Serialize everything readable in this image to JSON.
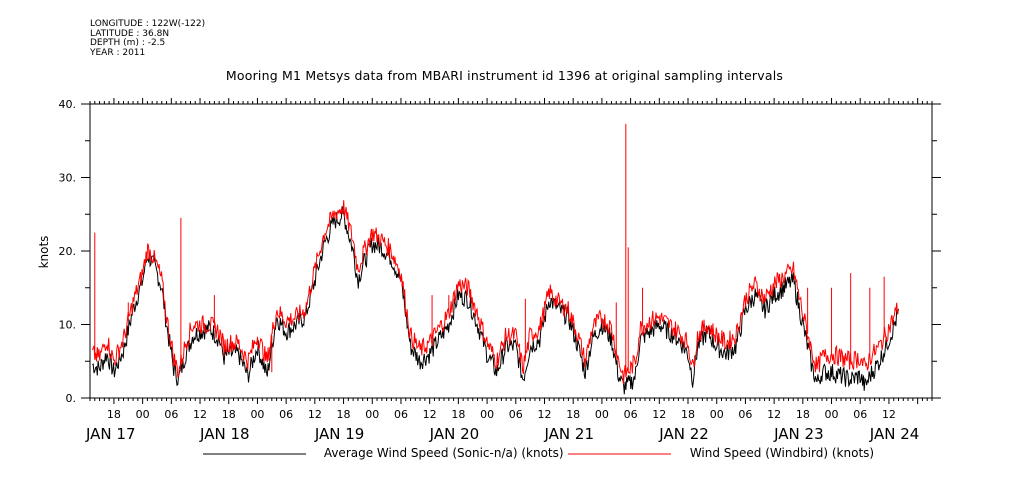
{
  "header": {
    "meta_lines": [
      "LONGITUDE : 122W(-122)",
      "LATITUDE : 36.8N",
      "DEPTH (m) : -2.5",
      "YEAR : 2011"
    ],
    "title": "Mooring M1 Metsys data from MBARI instrument id 1396 at original sampling intervals"
  },
  "colors": {
    "series_black": "#000000",
    "series_red": "#ff0000"
  },
  "chart_data": {
    "type": "line",
    "title": "Mooring M1 Metsys data from MBARI instrument id 1396 at original sampling intervals",
    "ylabel": "knots",
    "xlabel": "",
    "ylim": [
      0,
      40
    ],
    "yticks": [
      "0.",
      "10.",
      "20.",
      "30.",
      "40."
    ],
    "xlim_hours": [
      -11,
      165
    ],
    "hour_ticks": [
      {
        "h": -6,
        "label": "18"
      },
      {
        "h": 0,
        "label": "00"
      },
      {
        "h": 6,
        "label": "06"
      },
      {
        "h": 12,
        "label": "12"
      },
      {
        "h": 18,
        "label": "18"
      },
      {
        "h": 24,
        "label": "00"
      },
      {
        "h": 30,
        "label": "06"
      },
      {
        "h": 36,
        "label": "12"
      },
      {
        "h": 42,
        "label": "18"
      },
      {
        "h": 48,
        "label": "00"
      },
      {
        "h": 54,
        "label": "06"
      },
      {
        "h": 60,
        "label": "12"
      },
      {
        "h": 66,
        "label": "18"
      },
      {
        "h": 72,
        "label": "00"
      },
      {
        "h": 78,
        "label": "06"
      },
      {
        "h": 84,
        "label": "12"
      },
      {
        "h": 90,
        "label": "18"
      },
      {
        "h": 96,
        "label": "00"
      },
      {
        "h": 102,
        "label": "06"
      },
      {
        "h": 108,
        "label": "12"
      },
      {
        "h": 114,
        "label": "18"
      },
      {
        "h": 120,
        "label": "00"
      },
      {
        "h": 126,
        "label": "06"
      },
      {
        "h": 132,
        "label": "12"
      },
      {
        "h": 138,
        "label": "18"
      },
      {
        "h": 144,
        "label": "00"
      },
      {
        "h": 150,
        "label": "06"
      },
      {
        "h": 156,
        "label": "12"
      }
    ],
    "day_labels": [
      {
        "h": -12,
        "label": "JAN 17"
      },
      {
        "h": 12,
        "label": "JAN 18"
      },
      {
        "h": 36,
        "label": "JAN 19"
      },
      {
        "h": 60,
        "label": "JAN 20"
      },
      {
        "h": 84,
        "label": "JAN 21"
      },
      {
        "h": 108,
        "label": "JAN 22"
      },
      {
        "h": 132,
        "label": "JAN 23"
      },
      {
        "h": 152,
        "label": "JAN 24"
      }
    ],
    "series": [
      {
        "name": "Average Wind Speed (Sonic-n/a) (knots)",
        "color": "#000000",
        "points": [
          [
            -10.5,
            4.5
          ],
          [
            -9,
            4
          ],
          [
            -7.5,
            6
          ],
          [
            -6,
            3.5
          ],
          [
            -4,
            6.5
          ],
          [
            -2,
            12
          ],
          [
            0,
            16
          ],
          [
            1,
            19.5
          ],
          [
            2,
            18.5
          ],
          [
            3,
            17
          ],
          [
            4,
            15
          ],
          [
            5,
            10
          ],
          [
            6.5,
            4
          ],
          [
            7.5,
            2.5
          ],
          [
            9,
            6
          ],
          [
            10.5,
            8.5
          ],
          [
            12,
            9
          ],
          [
            14,
            9.5
          ],
          [
            16,
            8
          ],
          [
            17,
            5.5
          ],
          [
            18,
            6
          ],
          [
            20,
            6
          ],
          [
            22,
            3
          ],
          [
            24,
            7
          ],
          [
            26,
            3
          ],
          [
            28,
            11
          ],
          [
            30,
            9
          ],
          [
            32,
            10
          ],
          [
            34,
            11
          ],
          [
            36,
            16
          ],
          [
            38,
            21
          ],
          [
            40,
            24
          ],
          [
            42,
            25
          ],
          [
            44,
            20
          ],
          [
            45,
            16
          ],
          [
            46,
            18
          ],
          [
            48,
            21
          ],
          [
            50,
            20.5
          ],
          [
            52,
            19
          ],
          [
            54,
            16
          ],
          [
            56,
            7
          ],
          [
            58,
            5
          ],
          [
            60,
            6
          ],
          [
            62,
            8
          ],
          [
            64,
            10
          ],
          [
            66,
            14
          ],
          [
            68,
            13.5
          ],
          [
            70,
            10
          ],
          [
            72,
            6
          ],
          [
            74,
            3.5
          ],
          [
            76,
            7
          ],
          [
            78,
            7
          ],
          [
            79.5,
            2.5
          ],
          [
            81,
            7
          ],
          [
            83,
            8
          ],
          [
            85,
            13.5
          ],
          [
            87,
            12
          ],
          [
            89,
            11
          ],
          [
            91,
            7
          ],
          [
            92.5,
            3.5
          ],
          [
            94,
            8
          ],
          [
            96,
            10
          ],
          [
            98,
            8
          ],
          [
            99.5,
            3
          ],
          [
            100.5,
            1.5
          ],
          [
            102,
            2
          ],
          [
            103,
            3
          ],
          [
            104,
            8
          ],
          [
            106,
            9
          ],
          [
            108,
            10
          ],
          [
            110,
            9
          ],
          [
            112,
            8
          ],
          [
            114,
            6
          ],
          [
            115,
            2.5
          ],
          [
            116,
            7
          ],
          [
            118,
            9
          ],
          [
            120,
            7
          ],
          [
            122,
            6
          ],
          [
            124,
            7
          ],
          [
            126,
            12
          ],
          [
            128,
            14
          ],
          [
            130,
            12
          ],
          [
            132,
            14
          ],
          [
            134,
            15
          ],
          [
            136,
            16
          ],
          [
            137,
            13
          ],
          [
            138,
            10
          ],
          [
            140,
            4
          ],
          [
            141,
            2
          ],
          [
            142,
            3.5
          ],
          [
            144,
            3.5
          ],
          [
            146,
            3
          ],
          [
            148,
            2.5
          ],
          [
            150,
            3
          ],
          [
            151,
            1.5
          ],
          [
            152,
            3
          ],
          [
            154,
            5
          ],
          [
            156,
            8
          ],
          [
            158,
            11.5
          ]
        ]
      },
      {
        "name": "Wind Speed (Windbird) (knots)",
        "color": "#ff0000",
        "points": [
          [
            -10.5,
            6
          ],
          [
            -9,
            5.5
          ],
          [
            -7.5,
            8
          ],
          [
            -6,
            5
          ],
          [
            -4,
            8
          ],
          [
            -2,
            13
          ],
          [
            0,
            17
          ],
          [
            1,
            20.3
          ],
          [
            2,
            19.5
          ],
          [
            3,
            18
          ],
          [
            4,
            16
          ],
          [
            5,
            11
          ],
          [
            6.5,
            5.5
          ],
          [
            7.5,
            3.5
          ],
          [
            9,
            7.5
          ],
          [
            10.5,
            10
          ],
          [
            12,
            10
          ],
          [
            14,
            10
          ],
          [
            16,
            9
          ],
          [
            17,
            7
          ],
          [
            18,
            7.5
          ],
          [
            20,
            7.5
          ],
          [
            22,
            5
          ],
          [
            24,
            8.5
          ],
          [
            26,
            5
          ],
          [
            28,
            12
          ],
          [
            30,
            10.5
          ],
          [
            32,
            11
          ],
          [
            34,
            12
          ],
          [
            36,
            17.5
          ],
          [
            38,
            22.5
          ],
          [
            40,
            25
          ],
          [
            42,
            26
          ],
          [
            44,
            21.5
          ],
          [
            45,
            17.5
          ],
          [
            46,
            19.5
          ],
          [
            48,
            22.5
          ],
          [
            50,
            21.5
          ],
          [
            52,
            20
          ],
          [
            54,
            17
          ],
          [
            56,
            8.5
          ],
          [
            58,
            6.5
          ],
          [
            60,
            7.5
          ],
          [
            62,
            9.5
          ],
          [
            64,
            11.5
          ],
          [
            66,
            15.5
          ],
          [
            68,
            15
          ],
          [
            70,
            11.5
          ],
          [
            72,
            7.5
          ],
          [
            74,
            5
          ],
          [
            76,
            8.5
          ],
          [
            78,
            8.5
          ],
          [
            79.5,
            4
          ],
          [
            81,
            8.5
          ],
          [
            83,
            9.5
          ],
          [
            85,
            14.5
          ],
          [
            87,
            13
          ],
          [
            89,
            12
          ],
          [
            91,
            8.5
          ],
          [
            92.5,
            5
          ],
          [
            94,
            9.5
          ],
          [
            96,
            11
          ],
          [
            98,
            9.5
          ],
          [
            99.5,
            5
          ],
          [
            100.5,
            3
          ],
          [
            102,
            4
          ],
          [
            103,
            5
          ],
          [
            104,
            9.5
          ],
          [
            106,
            10.5
          ],
          [
            108,
            11
          ],
          [
            110,
            10
          ],
          [
            112,
            9
          ],
          [
            114,
            7.5
          ],
          [
            115,
            4
          ],
          [
            116,
            8.5
          ],
          [
            118,
            10
          ],
          [
            120,
            8.5
          ],
          [
            122,
            7.5
          ],
          [
            124,
            8.5
          ],
          [
            126,
            13.5
          ],
          [
            128,
            15.5
          ],
          [
            130,
            13.5
          ],
          [
            132,
            15.5
          ],
          [
            134,
            16.5
          ],
          [
            136,
            17.5
          ],
          [
            137,
            14.5
          ],
          [
            138,
            11.5
          ],
          [
            140,
            6
          ],
          [
            141,
            4
          ],
          [
            142,
            5.5
          ],
          [
            144,
            6
          ],
          [
            146,
            5.5
          ],
          [
            148,
            5
          ],
          [
            150,
            5.5
          ],
          [
            151,
            4
          ],
          [
            152,
            5.5
          ],
          [
            154,
            7
          ],
          [
            156,
            9.5
          ],
          [
            158,
            12.5
          ]
        ],
        "spikes": [
          [
            -10,
            22.5
          ],
          [
            -3,
            13
          ],
          [
            8,
            24.5
          ],
          [
            15,
            14
          ],
          [
            27,
            3.5
          ],
          [
            60.5,
            14
          ],
          [
            64,
            14
          ],
          [
            80,
            13.5
          ],
          [
            99,
            13
          ],
          [
            101,
            37.3
          ],
          [
            101.5,
            20.5
          ],
          [
            104.5,
            15
          ],
          [
            139,
            15
          ],
          [
            144,
            15
          ],
          [
            148,
            17
          ],
          [
            152,
            15
          ],
          [
            155,
            16.5
          ]
        ]
      }
    ],
    "legend": "bottom"
  }
}
